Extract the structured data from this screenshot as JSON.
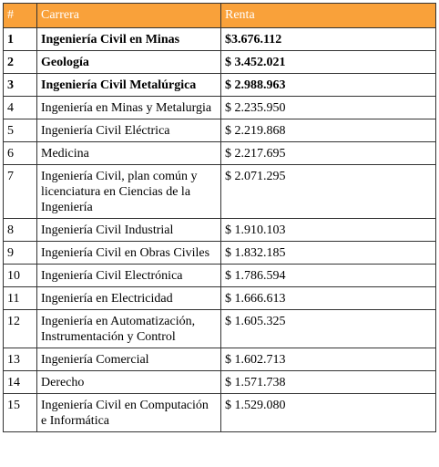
{
  "table": {
    "header": [
      "#",
      "Carrera",
      "Renta"
    ],
    "rows": [
      [
        "1",
        "Ingeniería Civil en Minas",
        "$3.676.112"
      ],
      [
        "2",
        "Geología",
        "$ 3.452.021"
      ],
      [
        "3",
        "Ingeniería Civil Metalúrgica",
        "$ 2.988.963"
      ],
      [
        "4",
        "Ingeniería en Minas y Metalurgia",
        "$ 2.235.950"
      ],
      [
        "5",
        "Ingeniería Civil Eléctrica",
        "$ 2.219.868"
      ],
      [
        "6",
        "Medicina",
        "$ 2.217.695"
      ],
      [
        "7",
        "Ingeniería Civil, plan común y licenciatura en Ciencias de la Ingeniería",
        "$ 2.071.295"
      ],
      [
        "8",
        "Ingeniería Civil Industrial",
        "$ 1.910.103"
      ],
      [
        "9",
        "Ingeniería Civil en Obras Civiles",
        "$ 1.832.185"
      ],
      [
        "10",
        "Ingeniería Civil Electrónica",
        "$ 1.786.594"
      ],
      [
        "11",
        "Ingeniería en Electricidad",
        "$ 1.666.613"
      ],
      [
        "12",
        "Ingeniería en Automatización, Instrumentación y Control",
        "$ 1.605.325"
      ],
      [
        "13",
        "Ingeniería Comercial",
        "$ 1.602.713"
      ],
      [
        "14",
        "Derecho",
        "$ 1.571.738"
      ],
      [
        "15",
        "Ingeniería Civil en Computación e Informática",
        "$ 1.529.080"
      ]
    ]
  }
}
